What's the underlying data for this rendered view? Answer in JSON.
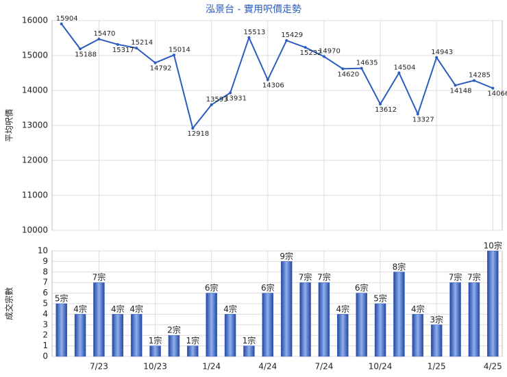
{
  "chart_data": [
    {
      "type": "line",
      "title": "泓景台 - 實用呎價走勢",
      "y_label": "平均呎價",
      "color": "#2a5cbf",
      "grid": true,
      "values": [
        15904,
        15188,
        15470,
        15317,
        15214,
        14792,
        15014,
        12918,
        13593,
        13931,
        15513,
        14306,
        15429,
        15232,
        14970,
        14620,
        14635,
        13612,
        14504,
        13327,
        14943,
        14148,
        14285,
        14066
      ],
      "ylim": [
        10000,
        16000
      ],
      "yticks": [
        10000,
        11000,
        12000,
        13000,
        14000,
        15000,
        16000
      ]
    },
    {
      "type": "bar",
      "y_label": "成交宗數",
      "color": "#3a66c4",
      "grid": true,
      "categories": [
        null,
        null,
        "7/23",
        null,
        null,
        "10/23",
        null,
        null,
        "1/24",
        null,
        null,
        "4/24",
        null,
        null,
        "7/24",
        null,
        null,
        "10/24",
        null,
        null,
        "1/25",
        null,
        null,
        "4/25"
      ],
      "values": [
        5,
        4,
        7,
        4,
        4,
        1,
        2,
        1,
        6,
        4,
        1,
        6,
        9,
        7,
        7,
        4,
        6,
        5,
        8,
        4,
        3,
        7,
        7,
        10
      ],
      "value_labels": [
        "5宗",
        "4宗",
        "7宗",
        "4宗",
        "4宗",
        "1宗",
        "2宗",
        "1宗",
        "6宗",
        "4宗",
        "1宗",
        "6宗",
        "9宗",
        "7宗",
        "7宗",
        "4宗",
        "6宗",
        "5宗",
        "8宗",
        "4宗",
        "3宗",
        "7宗",
        "7宗",
        "10宗"
      ],
      "ylim": [
        0,
        10
      ],
      "yticks": [
        0,
        1,
        2,
        3,
        4,
        5,
        6,
        7,
        8,
        9,
        10
      ]
    }
  ]
}
